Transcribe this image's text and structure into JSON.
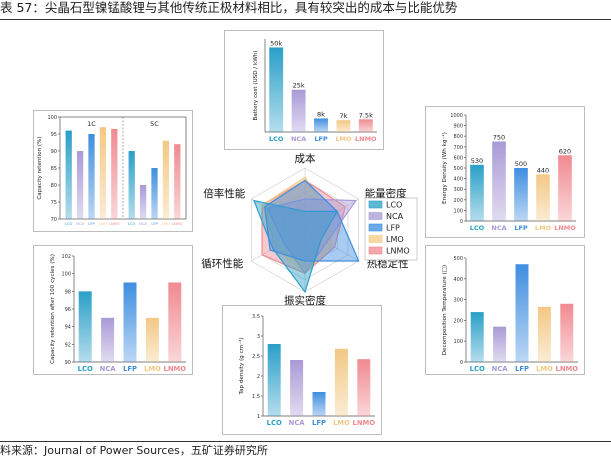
{
  "header": {
    "title": "表 57：尖晶石型镍锰酸锂与其他传统正极材料相比，具有较突出的成本与比能优势"
  },
  "footer": {
    "source": "料来源：Journal of Power Sources，五矿证券研究所"
  },
  "colors": {
    "LCO": "#2a9fc8",
    "NCA": "#a99ad6",
    "LFP": "#3f8ee0",
    "LMO": "#f3c884",
    "LNMO": "#f08a90"
  },
  "chart_data": [
    {
      "id": "rate",
      "type": "bar",
      "ylabel": "Capacity retention (%)",
      "ylim": [
        70,
        100
      ],
      "yticks": [
        70,
        75,
        80,
        85,
        90,
        95,
        100
      ],
      "groups": [
        {
          "label": "1C",
          "categories": [
            "LCO",
            "NCA",
            "LFP",
            "LMO",
            "LNMO"
          ],
          "values": [
            96,
            90,
            95,
            97,
            96.5
          ]
        },
        {
          "label": "5C",
          "categories": [
            "LCO",
            "NCA",
            "LFP",
            "LMO",
            "LNMO"
          ],
          "values": [
            90,
            80,
            85,
            93,
            92
          ]
        }
      ]
    },
    {
      "id": "cost",
      "type": "bar",
      "ylabel": "Battery cost (USD / kWh)",
      "categories": [
        "LCO",
        "NCA",
        "LFP",
        "LMO",
        "LNMO"
      ],
      "values": [
        50,
        25,
        8,
        7,
        7.5
      ],
      "data_labels": [
        "50k",
        "25k",
        "8k",
        "7k",
        "7.5k"
      ],
      "ylim": [
        0,
        55
      ]
    },
    {
      "id": "energy",
      "type": "bar",
      "ylabel": "Energy Density (Wh kg⁻¹)",
      "categories": [
        "LCO",
        "NCA",
        "LFP",
        "LMO",
        "LNMO"
      ],
      "values": [
        530,
        750,
        500,
        440,
        620
      ],
      "data_labels": [
        "530",
        "750",
        "500",
        "440",
        "620"
      ],
      "ylim": [
        0,
        1000
      ],
      "yticks": [
        0,
        100,
        200,
        300,
        400,
        500,
        600,
        700,
        800,
        900,
        1000
      ]
    },
    {
      "id": "radar",
      "type": "radar",
      "axes": [
        "成本",
        "能量密度",
        "热稳定性",
        "振实密度",
        "循环性能",
        "倍率性能"
      ],
      "legend": [
        "LCO",
        "NCA",
        "LFP",
        "LMO",
        "LNMO"
      ],
      "series": [
        {
          "name": "LCO",
          "values": [
            0.3,
            0.6,
            0.3,
            1.0,
            0.6,
            0.95
          ]
        },
        {
          "name": "NCA",
          "values": [
            0.5,
            0.95,
            0.4,
            0.7,
            0.4,
            0.7
          ]
        },
        {
          "name": "LFP",
          "values": [
            0.8,
            0.6,
            1.0,
            0.5,
            0.65,
            0.75
          ]
        },
        {
          "name": "LMO",
          "values": [
            0.85,
            0.45,
            0.5,
            0.7,
            0.55,
            0.8
          ]
        },
        {
          "name": "LNMO",
          "values": [
            0.8,
            0.75,
            0.55,
            0.7,
            0.8,
            0.8
          ]
        }
      ]
    },
    {
      "id": "cycle",
      "type": "bar",
      "ylabel": "Capacity retention after 100 cycles (%)",
      "categories": [
        "LCO",
        "NCA",
        "LFP",
        "LMO",
        "LNMO"
      ],
      "values": [
        98,
        95,
        99,
        95,
        99
      ],
      "ylim": [
        90,
        102
      ],
      "yticks": [
        90,
        92,
        94,
        96,
        98,
        100,
        102
      ]
    },
    {
      "id": "tap",
      "type": "bar",
      "ylabel": "Tap density (g cm⁻³)",
      "categories": [
        "LCO",
        "NCA",
        "LFP",
        "LMO",
        "LNMO"
      ],
      "values": [
        2.8,
        2.4,
        1.6,
        2.68,
        2.42
      ],
      "ylim": [
        1.0,
        3.5
      ],
      "yticks": [
        1.0,
        1.5,
        2.0,
        2.5,
        3.0,
        3.5
      ]
    },
    {
      "id": "thermal",
      "type": "bar",
      "ylabel": "Decomposition Temperature (□)",
      "categories": [
        "LCO",
        "NCA",
        "LFP",
        "LMO",
        "LNMO"
      ],
      "values": [
        240,
        170,
        470,
        265,
        280
      ],
      "ylim": [
        0,
        500
      ],
      "yticks": [
        0,
        100,
        200,
        300,
        400,
        500
      ]
    }
  ]
}
